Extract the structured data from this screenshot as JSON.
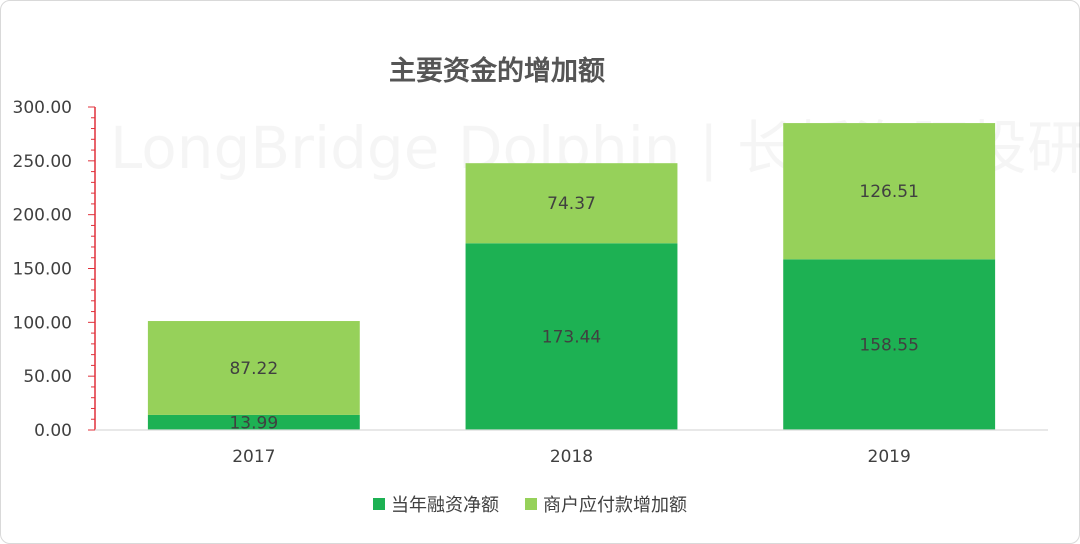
{
  "chart_data": {
    "type": "bar",
    "stacked": true,
    "title": "主要资金的增加额",
    "categories": [
      "2017",
      "2018",
      "2019"
    ],
    "series": [
      {
        "name": "当年融资净额",
        "values": [
          13.99,
          173.44,
          158.55
        ],
        "color": "#1db153"
      },
      {
        "name": "商户应付款增加额",
        "values": [
          87.22,
          74.37,
          126.51
        ],
        "color": "#96d15a"
      }
    ],
    "y_ticks": [
      "0.00",
      "50.00",
      "100.00",
      "150.00",
      "200.00",
      "250.00",
      "300.00"
    ],
    "ylim": [
      0,
      300
    ],
    "legend": "bottom",
    "grid": false,
    "axis_color": "#e0313b"
  },
  "watermark": "LongBridge Dolphin | 长桥海豚投研"
}
